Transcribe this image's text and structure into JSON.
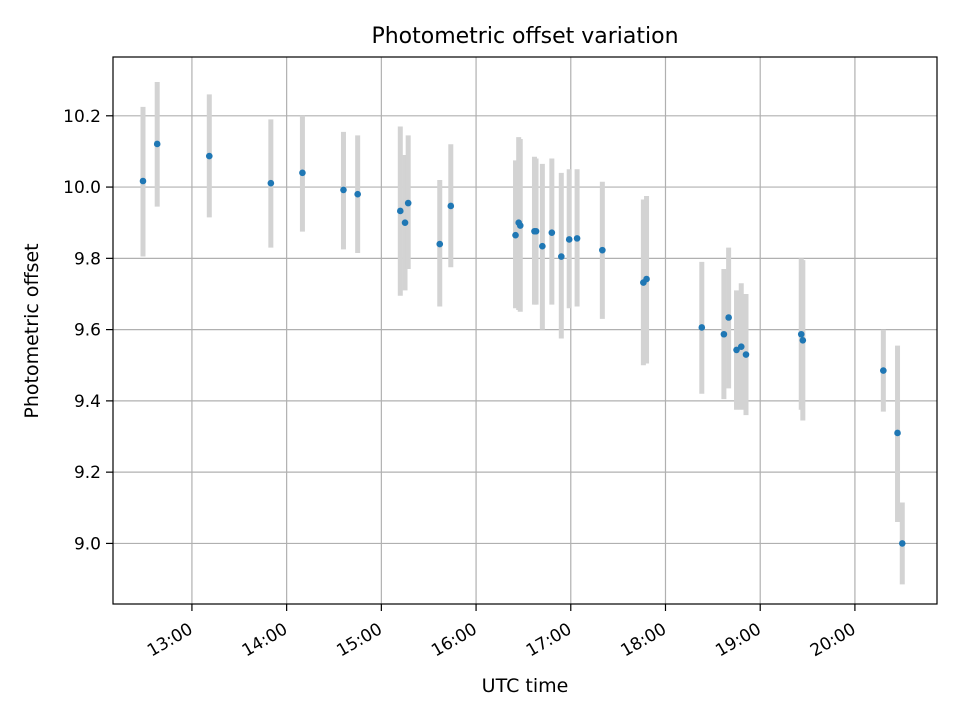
{
  "chart_data": {
    "type": "scatter",
    "title": "Photometric offset variation",
    "xlabel": "UTC time",
    "ylabel": "Photometric offset",
    "x_ticks": [
      "13:00",
      "14:00",
      "15:00",
      "16:00",
      "17:00",
      "18:00",
      "19:00",
      "20:00"
    ],
    "y_ticks": [
      "9.0",
      "9.2",
      "9.4",
      "9.6",
      "9.8",
      "10.0",
      "10.2"
    ],
    "xlim": [
      "12:10",
      "20:52"
    ],
    "ylim": [
      8.83,
      10.365
    ],
    "grid": true,
    "colors": {
      "point": "#1f77b4",
      "errorbar": "#d3d3d3",
      "grid": "#b0b0b0"
    },
    "series": [
      {
        "points": [
          {
            "x": "12:29",
            "y": 10.017,
            "yerr": [
              9.805,
              10.225
            ]
          },
          {
            "x": "12:38",
            "y": 10.121,
            "yerr": [
              9.945,
              10.295
            ]
          },
          {
            "x": "13:11",
            "y": 10.087,
            "yerr": [
              9.915,
              10.26
            ]
          },
          {
            "x": "13:50",
            "y": 10.011,
            "yerr": [
              9.83,
              10.19
            ]
          },
          {
            "x": "14:10",
            "y": 10.04,
            "yerr": [
              9.875,
              10.2
            ]
          },
          {
            "x": "14:36",
            "y": 9.992,
            "yerr": [
              9.825,
              10.155
            ]
          },
          {
            "x": "14:45",
            "y": 9.98,
            "yerr": [
              9.815,
              10.145
            ]
          },
          {
            "x": "15:12",
            "y": 9.933,
            "yerr": [
              9.695,
              10.17
            ]
          },
          {
            "x": "15:15",
            "y": 9.9,
            "yerr": [
              9.71,
              10.09
            ]
          },
          {
            "x": "15:17",
            "y": 9.955,
            "yerr": [
              9.77,
              10.145
            ]
          },
          {
            "x": "15:37",
            "y": 9.84,
            "yerr": [
              9.665,
              10.02
            ]
          },
          {
            "x": "15:44",
            "y": 9.947,
            "yerr": [
              9.775,
              10.12
            ]
          },
          {
            "x": "16:25",
            "y": 9.865,
            "yerr": [
              9.66,
              10.075
            ]
          },
          {
            "x": "16:27",
            "y": 9.9,
            "yerr": [
              9.655,
              10.14
            ]
          },
          {
            "x": "16:28",
            "y": 9.892,
            "yerr": [
              9.65,
              10.135
            ]
          },
          {
            "x": "16:37",
            "y": 9.876,
            "yerr": [
              9.67,
              10.085
            ]
          },
          {
            "x": "16:38",
            "y": 9.876,
            "yerr": [
              9.67,
              10.08
            ]
          },
          {
            "x": "16:42",
            "y": 9.834,
            "yerr": [
              9.6,
              10.065
            ]
          },
          {
            "x": "16:48",
            "y": 9.872,
            "yerr": [
              9.67,
              10.08
            ]
          },
          {
            "x": "16:54",
            "y": 9.805,
            "yerr": [
              9.575,
              10.04
            ]
          },
          {
            "x": "16:59",
            "y": 9.853,
            "yerr": [
              9.66,
              10.05
            ]
          },
          {
            "x": "17:04",
            "y": 9.856,
            "yerr": [
              9.665,
              10.05
            ]
          },
          {
            "x": "17:20",
            "y": 9.823,
            "yerr": [
              9.63,
              10.015
            ]
          },
          {
            "x": "17:46",
            "y": 9.732,
            "yerr": [
              9.5,
              9.965
            ]
          },
          {
            "x": "17:48",
            "y": 9.742,
            "yerr": [
              9.505,
              9.975
            ]
          },
          {
            "x": "18:23",
            "y": 9.606,
            "yerr": [
              9.42,
              9.79
            ]
          },
          {
            "x": "18:37",
            "y": 9.587,
            "yerr": [
              9.405,
              9.77
            ]
          },
          {
            "x": "18:40",
            "y": 9.634,
            "yerr": [
              9.435,
              9.83
            ]
          },
          {
            "x": "18:45",
            "y": 9.543,
            "yerr": [
              9.375,
              9.71
            ]
          },
          {
            "x": "18:48",
            "y": 9.552,
            "yerr": [
              9.375,
              9.73
            ]
          },
          {
            "x": "18:51",
            "y": 9.53,
            "yerr": [
              9.36,
              9.7
            ]
          },
          {
            "x": "19:26",
            "y": 9.587,
            "yerr": [
              9.375,
              9.8
            ]
          },
          {
            "x": "19:27",
            "y": 9.57,
            "yerr": [
              9.345,
              9.795
            ]
          },
          {
            "x": "20:18",
            "y": 9.485,
            "yerr": [
              9.37,
              9.6
            ]
          },
          {
            "x": "20:27",
            "y": 9.31,
            "yerr": [
              9.06,
              9.555
            ]
          },
          {
            "x": "20:30",
            "y": 9.0,
            "yerr": [
              8.885,
              9.115
            ]
          }
        ]
      }
    ]
  }
}
